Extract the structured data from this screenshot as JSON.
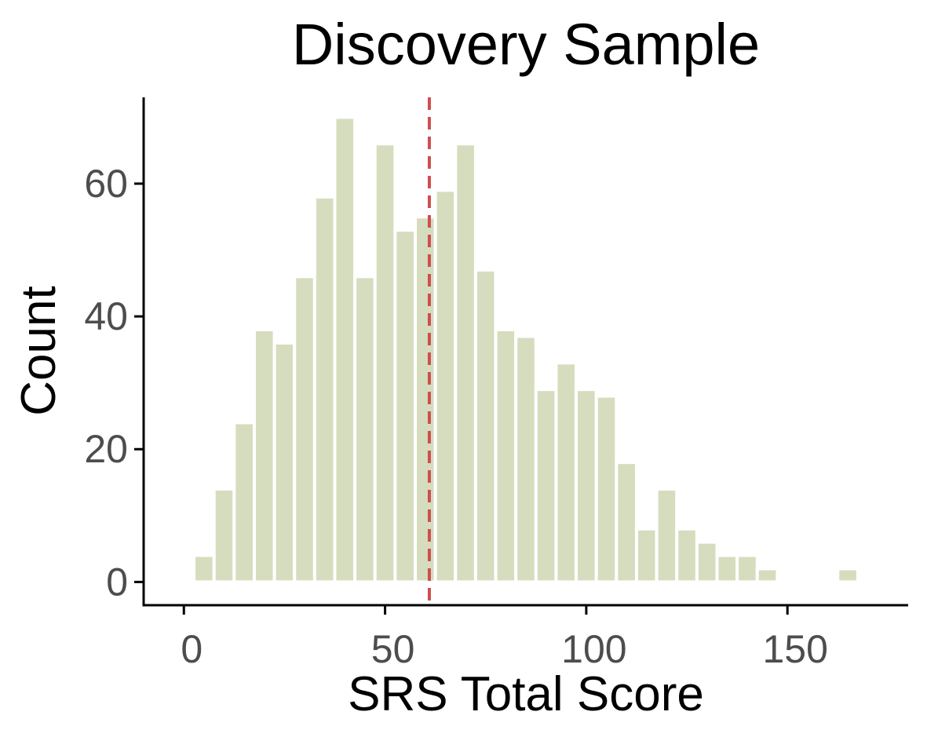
{
  "chart_data": {
    "type": "bar",
    "title": "Discovery Sample",
    "xlabel": "SRS Total Score",
    "ylabel": "Count",
    "xlim": [
      -10,
      180
    ],
    "ylim": [
      -3.5,
      73
    ],
    "x_ticks": [
      0,
      50,
      100,
      150
    ],
    "y_ticks": [
      0,
      20,
      40,
      60
    ],
    "bin_width": 5,
    "bins": [
      {
        "x": 5,
        "count": 4
      },
      {
        "x": 10,
        "count": 14
      },
      {
        "x": 15,
        "count": 24
      },
      {
        "x": 20,
        "count": 38
      },
      {
        "x": 25,
        "count": 36
      },
      {
        "x": 30,
        "count": 46
      },
      {
        "x": 35,
        "count": 58
      },
      {
        "x": 40,
        "count": 70
      },
      {
        "x": 45,
        "count": 46
      },
      {
        "x": 50,
        "count": 66
      },
      {
        "x": 55,
        "count": 53
      },
      {
        "x": 60,
        "count": 55
      },
      {
        "x": 65,
        "count": 59
      },
      {
        "x": 70,
        "count": 66
      },
      {
        "x": 75,
        "count": 47
      },
      {
        "x": 80,
        "count": 38
      },
      {
        "x": 85,
        "count": 37
      },
      {
        "x": 90,
        "count": 29
      },
      {
        "x": 95,
        "count": 33
      },
      {
        "x": 100,
        "count": 29
      },
      {
        "x": 105,
        "count": 28
      },
      {
        "x": 110,
        "count": 18
      },
      {
        "x": 115,
        "count": 8
      },
      {
        "x": 120,
        "count": 14
      },
      {
        "x": 125,
        "count": 8
      },
      {
        "x": 130,
        "count": 6
      },
      {
        "x": 135,
        "count": 4
      },
      {
        "x": 140,
        "count": 4
      },
      {
        "x": 145,
        "count": 2
      },
      {
        "x": 150,
        "count": 0
      },
      {
        "x": 155,
        "count": 0
      },
      {
        "x": 160,
        "count": 0
      },
      {
        "x": 165,
        "count": 2
      }
    ],
    "reference_line_x": 61,
    "bar_color": "#d6ddbe",
    "line_color": "#cd4f4f",
    "grid": false,
    "legend": "none"
  }
}
